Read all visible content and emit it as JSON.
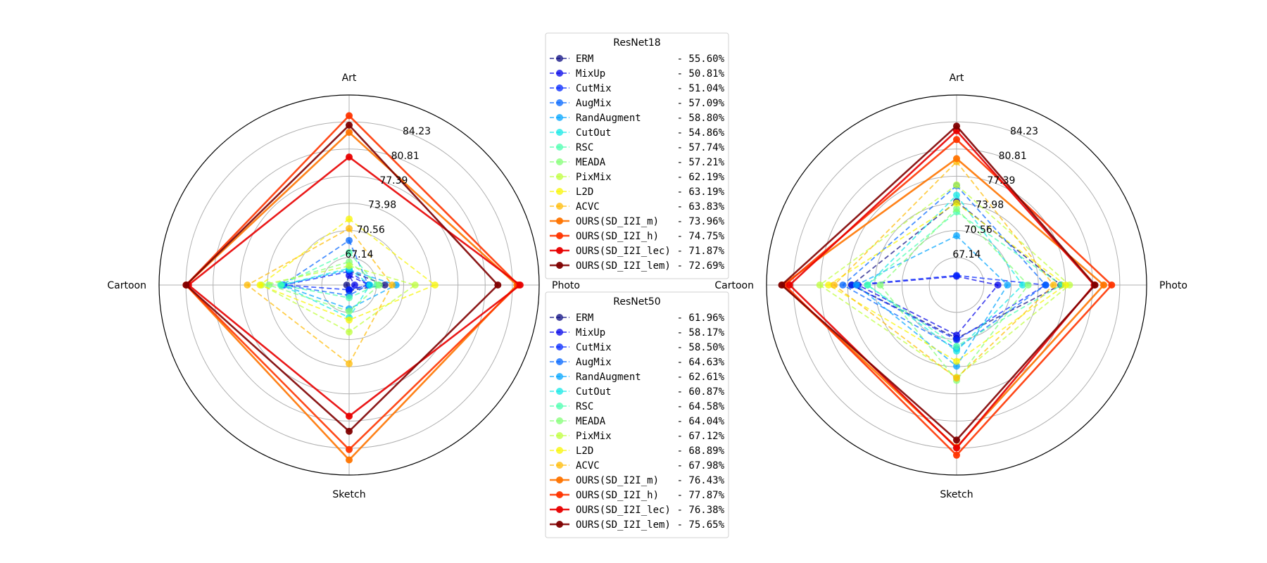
{
  "colors": {
    "palette": [
      "#0a0a80",
      "#0000e8",
      "#0024ff",
      "#0064ff",
      "#00a4ff",
      "#12e8e6",
      "#48ffae",
      "#82ff74",
      "#beff3a",
      "#f8f500",
      "#ffb900",
      "#ff7400",
      "#ff3500",
      "#e80000",
      "#800000"
    ],
    "grid": "#b0b0b0",
    "spine": "#000000"
  },
  "chart_data": [
    {
      "type": "radar",
      "categories": [
        "Art",
        "Photo",
        "Sketch",
        "Cartoon"
      ],
      "rlabels": [
        "67.14",
        "70.56",
        "73.98",
        "77.39",
        "80.81",
        "84.23"
      ],
      "rlim": [
        63.7,
        87.6
      ],
      "grid": true,
      "series": [
        {
          "name": "ERM",
          "values": [
            65.5,
            68.2,
            64.4,
            64.0
          ],
          "style": "dashed"
        },
        {
          "name": "MixUp",
          "values": [
            64.9,
            66.2,
            64.3,
            63.0
          ],
          "style": "dashed"
        },
        {
          "name": "CutMix",
          "values": [
            65.4,
            66.2,
            64.3,
            71.9
          ],
          "style": "dashed"
        },
        {
          "name": "AugMix",
          "values": [
            69.3,
            66.1,
            65.0,
            72.1
          ],
          "style": "dashed"
        },
        {
          "name": "RandAugment",
          "values": [
            65.6,
            69.6,
            66.7,
            72.2
          ],
          "style": "dashed"
        },
        {
          "name": "CutOut",
          "values": [
            65.8,
            66.3,
            67.8,
            72.2
          ],
          "style": "dashed"
        },
        {
          "name": "RSC",
          "values": [
            67.8,
            67.2,
            65.3,
            72.3
          ],
          "style": "dashed"
        },
        {
          "name": "MEADA",
          "values": [
            66.6,
            67.5,
            67.0,
            73.8
          ],
          "style": "dashed"
        },
        {
          "name": "PixMix",
          "values": [
            66.1,
            72.0,
            69.6,
            74.7
          ],
          "style": "dashed"
        },
        {
          "name": "L2D",
          "values": [
            72.0,
            74.5,
            68.1,
            74.9
          ],
          "style": "dashed"
        },
        {
          "name": "ACVC",
          "values": [
            70.8,
            69.1,
            73.6,
            76.5
          ],
          "style": "dashed"
        },
        {
          "name": "OURS(SD_I2I_m)",
          "values": [
            82.9,
            84.8,
            85.7,
            84.2
          ],
          "style": "solid"
        },
        {
          "name": "OURS(SD_I2I_h)",
          "values": [
            85.0,
            85.0,
            84.4,
            84.2
          ],
          "style": "solid"
        },
        {
          "name": "OURS(SD_I2I_lec)",
          "values": [
            79.8,
            85.2,
            80.2,
            83.9
          ],
          "style": "solid"
        },
        {
          "name": "OURS(SD_I2I_lem)",
          "values": [
            83.8,
            82.4,
            82.1,
            84.2
          ],
          "style": "solid"
        }
      ]
    },
    {
      "type": "radar",
      "categories": [
        "Art",
        "Photo",
        "Sketch",
        "Cartoon"
      ],
      "rlabels": [
        "67.14",
        "70.56",
        "73.98",
        "77.39",
        "80.81",
        "84.23"
      ],
      "rlim": [
        63.7,
        87.6
      ],
      "grid": true,
      "series": [
        {
          "name": "ERM",
          "values": [
            74.2,
            76.8,
            70.4,
            76.9
          ],
          "style": "dashed"
        },
        {
          "name": "MixUp",
          "values": [
            64.8,
            68.9,
            70.0,
            76.1
          ],
          "style": "dashed"
        },
        {
          "name": "CutMix",
          "values": [
            64.9,
            74.9,
            70.6,
            76.9
          ],
          "style": "dashed"
        },
        {
          "name": "AugMix",
          "values": [
            76.2,
            74.9,
            71.7,
            78.0
          ],
          "style": "dashed"
        },
        {
          "name": "RandAugment",
          "values": [
            69.9,
            70.1,
            73.9,
            76.3
          ],
          "style": "dashed"
        },
        {
          "name": "CutOut",
          "values": [
            75.0,
            72.0,
            72.0,
            74.9
          ],
          "style": "dashed"
        },
        {
          "name": "RSC",
          "values": [
            72.9,
            76.9,
            71.4,
            74.9
          ],
          "style": "dashed"
        },
        {
          "name": "MEADA",
          "values": [
            73.3,
            72.7,
            75.7,
            73.3
          ],
          "style": "dashed"
        },
        {
          "name": "PixMix",
          "values": [
            76.3,
            77.9,
            75.3,
            80.9
          ],
          "style": "dashed"
        },
        {
          "name": "L2D",
          "values": [
            74.0,
            77.4,
            73.3,
            79.8
          ],
          "style": "dashed"
        },
        {
          "name": "ACVC",
          "values": [
            79.2,
            75.9,
            75.4,
            79.1
          ],
          "style": "dashed"
        },
        {
          "name": "OURS(SD_I2I_m)",
          "values": [
            79.6,
            82.2,
            84.1,
            85.6
          ],
          "style": "solid"
        },
        {
          "name": "OURS(SD_I2I_h)",
          "values": [
            82.0,
            83.2,
            85.1,
            85.3
          ],
          "style": "solid"
        },
        {
          "name": "OURS(SD_I2I_lec)",
          "values": [
            83.1,
            81.0,
            84.2,
            84.7
          ],
          "style": "solid"
        },
        {
          "name": "OURS(SD_I2I_lem)",
          "values": [
            83.7,
            81.1,
            83.2,
            85.7
          ],
          "style": "solid"
        }
      ]
    }
  ],
  "legends": [
    {
      "title": "ResNet18",
      "entries": [
        {
          "name": "ERM",
          "value": "- 55.60%"
        },
        {
          "name": "MixUp",
          "value": "- 50.81%"
        },
        {
          "name": "CutMix",
          "value": "- 51.04%"
        },
        {
          "name": "AugMix",
          "value": "- 57.09%"
        },
        {
          "name": "RandAugment",
          "value": "- 58.80%"
        },
        {
          "name": "CutOut",
          "value": "- 54.86%"
        },
        {
          "name": "RSC",
          "value": "- 57.74%"
        },
        {
          "name": "MEADA",
          "value": "- 57.21%"
        },
        {
          "name": "PixMix",
          "value": "- 62.19%"
        },
        {
          "name": "L2D",
          "value": "- 63.19%"
        },
        {
          "name": "ACVC",
          "value": "- 63.83%"
        },
        {
          "name": "OURS(SD_I2I_m)",
          "value": "- 73.96%"
        },
        {
          "name": "OURS(SD_I2I_h)",
          "value": "- 74.75%"
        },
        {
          "name": "OURS(SD_I2I_lec)",
          "value": "- 71.87%"
        },
        {
          "name": "OURS(SD_I2I_lem)",
          "value": "- 72.69%"
        }
      ]
    },
    {
      "title": "ResNet50",
      "entries": [
        {
          "name": "ERM",
          "value": "- 61.96%"
        },
        {
          "name": "MixUp",
          "value": "- 58.17%"
        },
        {
          "name": "CutMix",
          "value": "- 58.50%"
        },
        {
          "name": "AugMix",
          "value": "- 64.63%"
        },
        {
          "name": "RandAugment",
          "value": "- 62.61%"
        },
        {
          "name": "CutOut",
          "value": "- 60.87%"
        },
        {
          "name": "RSC",
          "value": "- 64.58%"
        },
        {
          "name": "MEADA",
          "value": "- 64.04%"
        },
        {
          "name": "PixMix",
          "value": "- 67.12%"
        },
        {
          "name": "L2D",
          "value": "- 68.89%"
        },
        {
          "name": "ACVC",
          "value": "- 67.98%"
        },
        {
          "name": "OURS(SD_I2I_m)",
          "value": "- 76.43%"
        },
        {
          "name": "OURS(SD_I2I_h)",
          "value": "- 77.87%"
        },
        {
          "name": "OURS(SD_I2I_lec)",
          "value": "- 76.38%"
        },
        {
          "name": "OURS(SD_I2I_lem)",
          "value": "- 75.65%"
        }
      ]
    }
  ]
}
